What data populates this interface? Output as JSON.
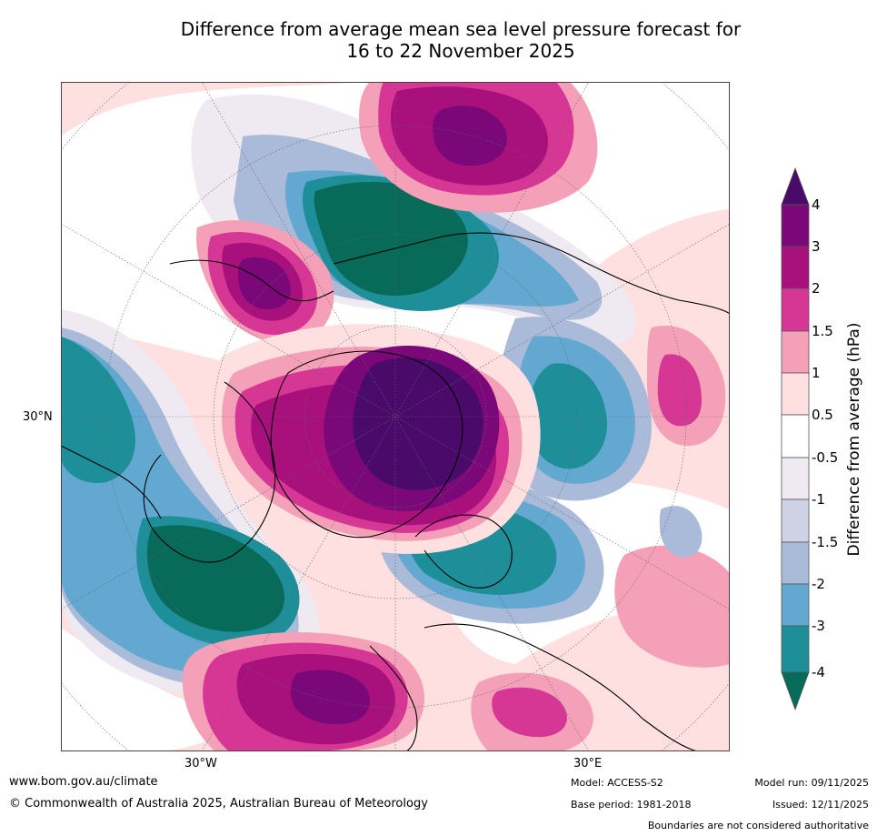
{
  "title": {
    "line1": "Difference from average mean sea level pressure forecast for",
    "line2": "16 to 22 November 2025"
  },
  "map": {
    "projection": "polar-stereographic",
    "latitude_label": "30°N",
    "longitude_labels": [
      "30°W",
      "30°E"
    ],
    "anomaly_regions": [
      {
        "name": "greenland-high",
        "level": "4",
        "color": "#4a0a6a"
      },
      {
        "name": "greenland-high-outer",
        "level": "3",
        "color": "#a8107c"
      },
      {
        "name": "alaska-high",
        "level": "3",
        "color": "#7a0878"
      },
      {
        "name": "siberia-high",
        "level": "3",
        "color": "#7a0878"
      },
      {
        "name": "north-atlantic-high",
        "level": "3",
        "color": "#7a0878"
      },
      {
        "name": "east-siberia-low",
        "level": "-4",
        "color": "#086a58"
      },
      {
        "name": "north-pacific-low",
        "level": "-4",
        "color": "#086a58"
      },
      {
        "name": "scandinavia-low",
        "level": "-3",
        "color": "#1e8e98"
      },
      {
        "name": "west-siberia-low",
        "level": "-3",
        "color": "#1e8e98"
      }
    ]
  },
  "colorbar": {
    "label": "Difference from average (hPa)",
    "ticks": [
      "4",
      "3",
      "2",
      "1.5",
      "1",
      "0.5",
      "-0.5",
      "-1",
      "-1.5",
      "-2",
      "-3",
      "-4"
    ],
    "colors": [
      "#4a0a6a",
      "#7a0878",
      "#a8107c",
      "#d63694",
      "#f4a0b8",
      "#fde0df",
      "#ffffff",
      "#efeaf2",
      "#cfd1e5",
      "#a9bbd8",
      "#62a8d0",
      "#1e8e98",
      "#086a58"
    ]
  },
  "footer": {
    "url": "www.bom.gov.au/climate",
    "copyright": "© Commonwealth of Australia 2025, Australian Bureau of Meteorology",
    "model": "Model: ACCESS-S2",
    "base_period": "Base period: 1981-2018",
    "model_run": "Model run: 09/11/2025",
    "issued": "Issued: 12/11/2025",
    "boundaries": "Boundaries are not considered authoritative"
  }
}
